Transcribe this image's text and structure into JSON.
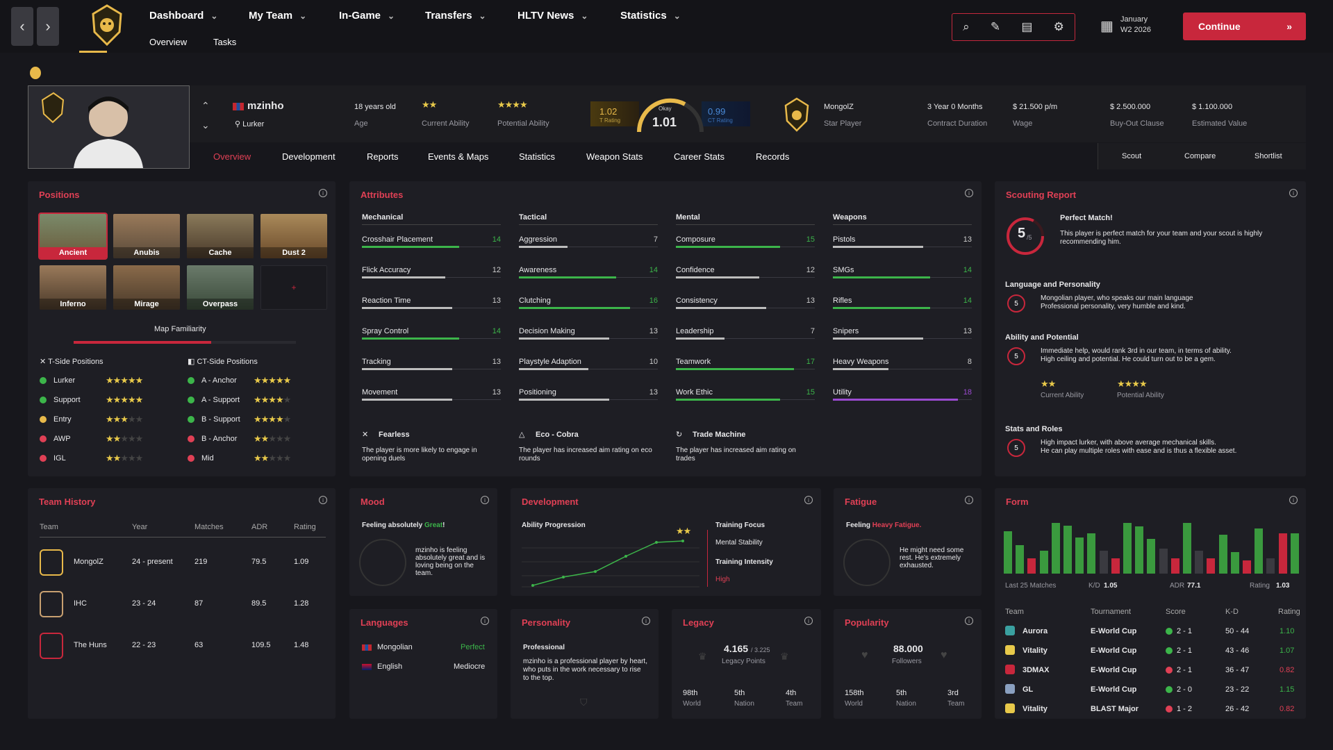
{
  "nav": {
    "menus": [
      "Dashboard",
      "My Team",
      "In-Game",
      "Transfers",
      "HLTV News",
      "Statistics"
    ],
    "submenus": [
      "Overview",
      "Tasks"
    ],
    "date_month": "January",
    "date_week": "W2 2026",
    "continue": "Continue"
  },
  "player": {
    "name": "mzinho",
    "role": "Lurker",
    "age": "18 years old",
    "age_label": "Age",
    "current_ability_label": "Current Ability",
    "potential_ability_label": "Potential Ability",
    "current_stars": 2,
    "potential_stars": 4,
    "t_rating": "1.02",
    "t_rating_label": "T Rating",
    "overall_rating_word": "Okay",
    "overall_rating": "1.01",
    "ct_rating": "0.99",
    "ct_rating_label": "CT Rating",
    "team": "MongolZ",
    "team_role": "Star Player",
    "contract": "3 Year 0 Months",
    "contract_label": "Contract Duration",
    "wage": "$ 21.500 p/m",
    "wage_label": "Wage",
    "buyout": "$ 2.500.000",
    "buyout_label": "Buy-Out Clause",
    "value": "$ 1.100.000",
    "value_label": "Estimated Value"
  },
  "tabs": [
    "Overview",
    "Development",
    "Reports",
    "Events & Maps",
    "Statistics",
    "Weapon Stats",
    "Career Stats",
    "Records"
  ],
  "actions": [
    "Scout",
    "Compare",
    "Shortlist"
  ],
  "positions": {
    "title": "Positions",
    "maps": [
      "Ancient",
      "Anubis",
      "Cache",
      "Dust 2",
      "Inferno",
      "Mirage",
      "Overpass"
    ],
    "add": "+",
    "familiarity_label": "Map Familiarity",
    "familiarity": 0.62,
    "t_header": "T-Side Positions",
    "ct_header": "CT-Side Positions",
    "t_side": [
      {
        "name": "Lurker",
        "stars": 5,
        "color": "#3cb54a"
      },
      {
        "name": "Support",
        "stars": 5,
        "color": "#3cb54a"
      },
      {
        "name": "Entry",
        "stars": 3,
        "color": "#e8b94a"
      },
      {
        "name": "AWP",
        "stars": 2,
        "color": "#e04055"
      },
      {
        "name": "IGL",
        "stars": 2,
        "color": "#e04055"
      }
    ],
    "ct_side": [
      {
        "name": "A - Anchor",
        "stars": 5,
        "color": "#3cb54a"
      },
      {
        "name": "A - Support",
        "stars": 4,
        "color": "#3cb54a"
      },
      {
        "name": "B - Support",
        "stars": 4,
        "color": "#3cb54a"
      },
      {
        "name": "B - Anchor",
        "stars": 2,
        "color": "#e04055"
      },
      {
        "name": "Mid",
        "stars": 2,
        "color": "#e04055"
      }
    ]
  },
  "attributes": {
    "title": "Attributes",
    "columns": [
      {
        "header": "Mechanical",
        "rows": [
          [
            "Crosshair Placement",
            14
          ],
          [
            "Flick Accuracy",
            12
          ],
          [
            "Reaction Time",
            13
          ],
          [
            "Spray Control",
            14
          ],
          [
            "Tracking",
            13
          ],
          [
            "Movement",
            13
          ]
        ]
      },
      {
        "header": "Tactical",
        "rows": [
          [
            "Aggression",
            7
          ],
          [
            "Awareness",
            14
          ],
          [
            "Clutching",
            16
          ],
          [
            "Decision Making",
            13
          ],
          [
            "Playstyle Adaption",
            10
          ],
          [
            "Positioning",
            13
          ]
        ]
      },
      {
        "header": "Mental",
        "rows": [
          [
            "Composure",
            15
          ],
          [
            "Confidence",
            12
          ],
          [
            "Consistency",
            13
          ],
          [
            "Leadership",
            7
          ],
          [
            "Teamwork",
            17
          ],
          [
            "Work Ethic",
            15
          ]
        ]
      },
      {
        "header": "Weapons",
        "rows": [
          [
            "Pistols",
            13
          ],
          [
            "SMGs",
            14
          ],
          [
            "Rifles",
            14
          ],
          [
            "Snipers",
            13
          ],
          [
            "Heavy Weapons",
            8
          ],
          [
            "Utility",
            18
          ]
        ]
      }
    ],
    "traits": [
      {
        "name": "Fearless",
        "desc": "The player is more likely to engage in opening duels"
      },
      {
        "name": "Eco - Cobra",
        "desc": "The player has increased aim rating on eco rounds"
      },
      {
        "name": "Trade Machine",
        "desc": "The player has increased aim rating on trades"
      }
    ]
  },
  "scouting": {
    "title": "Scouting Report",
    "score": "5",
    "max": "/5",
    "headline": "Perfect Match!",
    "summary": "This player is perfect match for your team and your scout is highly recommending him.",
    "sections": [
      {
        "title": "Language and Personality",
        "score": "5",
        "lines": [
          "Mongolian player, who speaks our main language",
          "Professional personality, very humble and kind."
        ]
      },
      {
        "title": "Ability and Potential",
        "score": "5",
        "lines": [
          "Immediate help, would rank 3rd in our team, in terms of ability.",
          "High ceiling and potential. He could turn out to be a gem."
        ]
      },
      {
        "title": "Stats and Roles",
        "score": "5",
        "lines": [
          "High impact lurker, with above average mechanical skills.",
          "He can play multiple roles with ease and is thus a flexible asset."
        ]
      }
    ],
    "current_label": "Current Ability",
    "potential_label": "Potential Ability"
  },
  "history": {
    "title": "Team History",
    "headers": [
      "Team",
      "Year",
      "Matches",
      "ADR",
      "Rating"
    ],
    "rows": [
      [
        "MongolZ",
        "24 - present",
        "219",
        "79.5",
        "1.09"
      ],
      [
        "IHC",
        "23 - 24",
        "87",
        "89.5",
        "1.28"
      ],
      [
        "The Huns",
        "22 - 23",
        "63",
        "109.5",
        "1.48"
      ]
    ]
  },
  "mood": {
    "title": "Mood",
    "prefix": "Feeling absolutely ",
    "state": "Great",
    "suffix": "!",
    "text": "mzinho is feeling absolutely great and is loving being on the team."
  },
  "development": {
    "title": "Development",
    "chart_label": "Ability Progression",
    "focus_label": "Training Focus",
    "focus": "Mental Stability",
    "intensity_label": "Training Intensity",
    "intensity": "High"
  },
  "fatigue": {
    "title": "Fatigue",
    "prefix": "Feeling ",
    "state": "Heavy Fatigue.",
    "text": "He might need some rest. He's extremely exhausted."
  },
  "form": {
    "title": "Form",
    "caption": "Last 25 Matches",
    "kd_label": "K/D",
    "kd": "1.05",
    "adr_label": "ADR",
    "adr": "77.1",
    "rating_label": "Rating",
    "rating": "1.03",
    "bars": [
      0.82,
      0.55,
      0.3,
      0.45,
      0.98,
      0.93,
      0.7,
      0.78,
      0.45,
      0.3,
      0.98,
      0.92,
      0.67,
      0.48,
      0.3,
      0.98,
      0.45,
      0.3,
      0.75,
      0.42,
      0.25,
      0.88,
      0.3,
      0.78,
      0.78
    ],
    "bar_colors": [
      "g",
      "g",
      "r",
      "g",
      "g",
      "g",
      "g",
      "g",
      "d",
      "r",
      "g",
      "g",
      "g",
      "d",
      "r",
      "g",
      "d",
      "r",
      "g",
      "g",
      "r",
      "g",
      "d",
      "r",
      "g"
    ],
    "headers": [
      "Team",
      "Tournament",
      "Score",
      "K-D",
      "Rating"
    ],
    "matches": [
      [
        "Aurora",
        "E-World Cup",
        "2 - 1",
        "50 - 44",
        "1.10",
        "g"
      ],
      [
        "Vitality",
        "E-World Cup",
        "2 - 1",
        "43 - 46",
        "1.07",
        "g"
      ],
      [
        "3DMAX",
        "E-World Cup",
        "2 - 1",
        "36 - 47",
        "0.82",
        "r"
      ],
      [
        "GL",
        "E-World Cup",
        "2 - 0",
        "23 - 22",
        "1.15",
        "g"
      ],
      [
        "Vitality",
        "BLAST Major",
        "1 - 2",
        "26 - 42",
        "0.82",
        "r"
      ]
    ]
  },
  "languages": {
    "title": "Languages",
    "rows": [
      [
        "Mongolian",
        "Perfect"
      ],
      [
        "English",
        "Mediocre"
      ]
    ]
  },
  "personality": {
    "title": "Personality",
    "type": "Professional",
    "text": "mzinho is a professional player by heart, who puts in the work necessary to rise to the top."
  },
  "legacy": {
    "title": "Legacy",
    "points": "4.165",
    "max": "/ 3.225",
    "label": "Legacy Points",
    "ranks": [
      [
        "98th",
        "World"
      ],
      [
        "5th",
        "Nation"
      ],
      [
        "4th",
        "Team"
      ]
    ]
  },
  "popularity": {
    "title": "Popularity",
    "followers": "88.000",
    "label": "Followers",
    "ranks": [
      [
        "158th",
        "World"
      ],
      [
        "5th",
        "Nation"
      ],
      [
        "3rd",
        "Team"
      ]
    ]
  }
}
